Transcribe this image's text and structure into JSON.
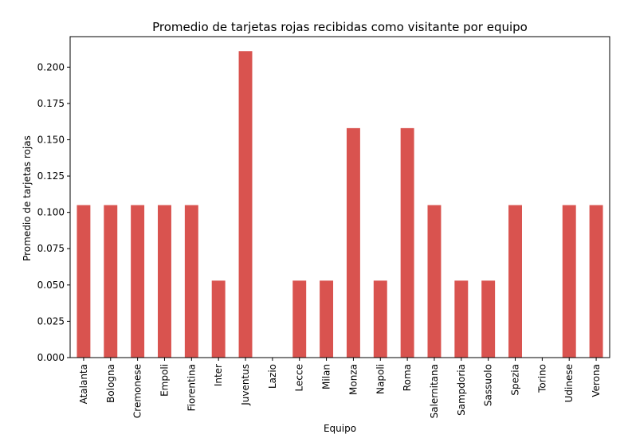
{
  "chart_data": {
    "type": "bar",
    "title": "Promedio de tarjetas rojas recibidas como visitante por equipo",
    "xlabel": "Equipo",
    "ylabel": "Promedio de tarjetas rojas",
    "categories": [
      "Atalanta",
      "Bologna",
      "Cremonese",
      "Empoli",
      "Fiorentina",
      "Inter",
      "Juventus",
      "Lazio",
      "Lecce",
      "Milan",
      "Monza",
      "Napoli",
      "Roma",
      "Salernitana",
      "Sampdoria",
      "Sassuolo",
      "Spezia",
      "Torino",
      "Udinese",
      "Verona"
    ],
    "values": [
      0.105,
      0.105,
      0.105,
      0.105,
      0.105,
      0.053,
      0.211,
      0.0,
      0.053,
      0.053,
      0.158,
      0.053,
      0.158,
      0.105,
      0.053,
      0.053,
      0.105,
      0.0,
      0.105,
      0.105
    ],
    "ylim": [
      0,
      0.221
    ],
    "yticks": [
      "0.000",
      "0.025",
      "0.050",
      "0.075",
      "0.100",
      "0.125",
      "0.150",
      "0.175",
      "0.200"
    ],
    "bar_color": "#d9534f",
    "grid": false,
    "legend": "none"
  }
}
